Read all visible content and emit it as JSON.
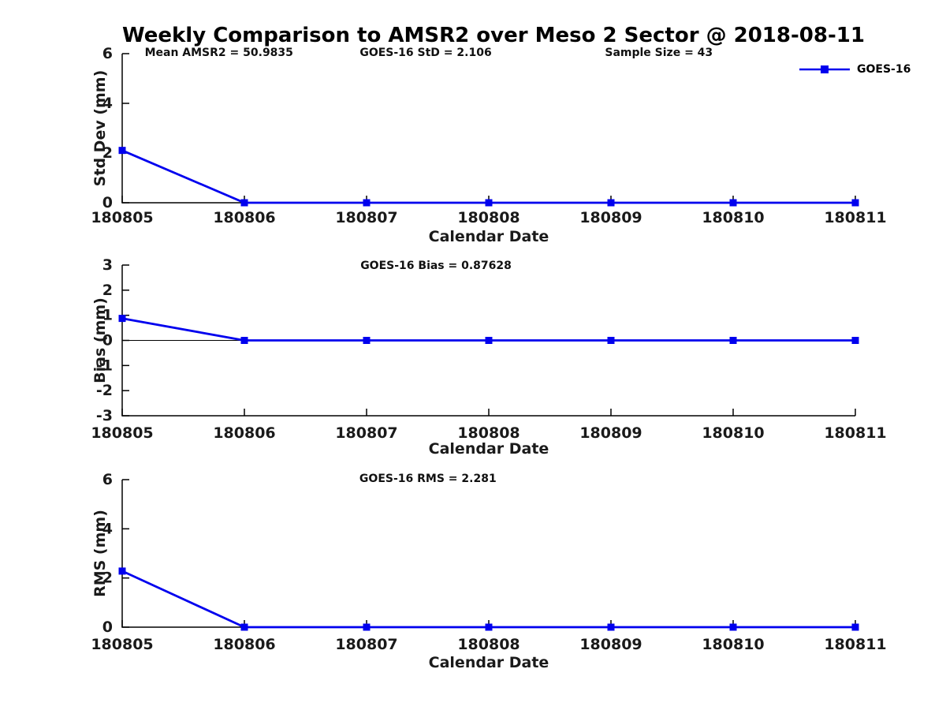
{
  "title": "Weekly Comparison to AMSR2 over Meso 2 Sector @ 2018-08-11",
  "legend": {
    "label": "GOES-16",
    "marker": "square"
  },
  "colors": {
    "series": "#0000ee",
    "axis": "#000000",
    "text": "#1a1a1a",
    "background": "#ffffff"
  },
  "chart_data": [
    {
      "type": "line",
      "ylabel": "Std Dev (mm)",
      "xlabel": "Calendar Date",
      "categories": [
        "180805",
        "180806",
        "180807",
        "180808",
        "180809",
        "180810",
        "180811"
      ],
      "series": [
        {
          "name": "GOES-16",
          "values": [
            2.106,
            0,
            0,
            0,
            0,
            0,
            0
          ]
        }
      ],
      "ylim": [
        0,
        6
      ],
      "yticks": [
        0,
        2,
        4,
        6
      ],
      "grid": false,
      "legend_position": "above-top-right",
      "annotations": [
        {
          "text": "Mean AMSR2 = 50.9835",
          "xfrac": 0.132
        },
        {
          "text": "GOES-16 StD = 2.106",
          "xfrac": 0.414
        },
        {
          "text": "Sample Size = 43",
          "xfrac": 0.732
        }
      ]
    },
    {
      "type": "line",
      "ylabel": "Bias (mm)",
      "xlabel": "Calendar Date",
      "categories": [
        "180805",
        "180806",
        "180807",
        "180808",
        "180809",
        "180810",
        "180811"
      ],
      "series": [
        {
          "name": "GOES-16",
          "values": [
            0.87628,
            0,
            0,
            0,
            0,
            0,
            0
          ]
        }
      ],
      "ylim": [
        -3,
        3
      ],
      "yticks": [
        -3,
        -2,
        -1,
        0,
        1,
        2,
        3
      ],
      "zero_line": true,
      "grid": false,
      "annotations": [
        {
          "text": "GOES-16 Bias  = 0.87628",
          "xfrac": 0.428
        }
      ]
    },
    {
      "type": "line",
      "ylabel": "RMS (mm)",
      "xlabel": "Calendar Date",
      "categories": [
        "180805",
        "180806",
        "180807",
        "180808",
        "180809",
        "180810",
        "180811"
      ],
      "series": [
        {
          "name": "GOES-16",
          "values": [
            2.281,
            0,
            0,
            0,
            0,
            0,
            0
          ]
        }
      ],
      "ylim": [
        0,
        6
      ],
      "yticks": [
        0,
        2,
        4,
        6
      ],
      "grid": false,
      "annotations": [
        {
          "text": "GOES-16 RMS = 2.281",
          "xfrac": 0.417
        }
      ]
    }
  ]
}
